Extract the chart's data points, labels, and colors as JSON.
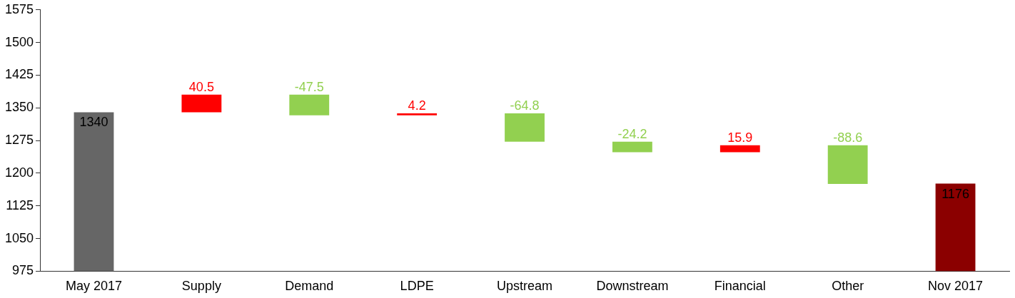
{
  "chart_data": {
    "type": "bar",
    "categories": [
      "May 2017",
      "Supply",
      "Demand",
      "LDPE",
      "Upstream",
      "Downstream",
      "Financial",
      "Other",
      "Nov 2017"
    ],
    "base": [
      975,
      1340,
      1380.5,
      1333,
      1337.2,
      1272.4,
      1248.2,
      1264.1,
      975
    ],
    "values": [
      365,
      40.5,
      -47.5,
      4.2,
      -64.8,
      -24.2,
      15.9,
      -88.6,
      201
    ],
    "colors": [
      "#666666",
      "#ff0000",
      "#92d050",
      "#ff0000",
      "#92d050",
      "#92d050",
      "#ff0000",
      "#92d050",
      "#8b0000"
    ],
    "value_labels": [
      "1340",
      "40.5",
      "-47.5",
      "4.2",
      "-64.8",
      "-24.2",
      "15.9",
      "-88.6",
      "1176"
    ],
    "ylim": [
      975,
      1575
    ],
    "yticks": [
      975,
      1050,
      1125,
      1200,
      1275,
      1350,
      1425,
      1500,
      1575
    ],
    "grid": false,
    "legend": false
  }
}
